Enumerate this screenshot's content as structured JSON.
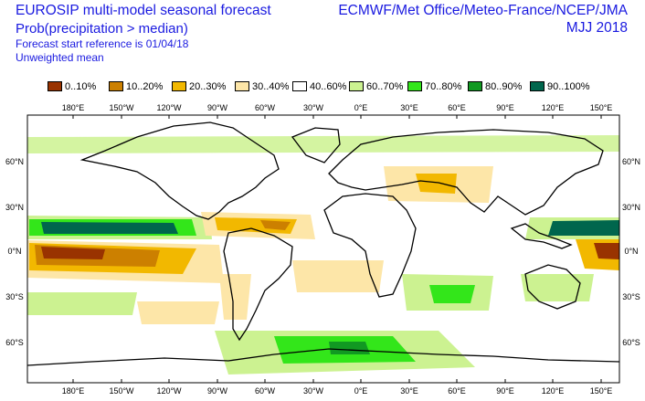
{
  "header": {
    "title": "EUROSIP multi-model seasonal forecast",
    "subtitle": "Prob(precipitation > median)",
    "line3": "Forecast start reference is 01/04/18",
    "line4": "Unweighted mean",
    "agencies": "ECMWF/Met Office/Meteo-France/NCEP/JMA",
    "period": "MJJ 2018"
  },
  "legend": [
    {
      "label": "0..10%",
      "color": "#993300"
    },
    {
      "label": "10..20%",
      "color": "#cc8000"
    },
    {
      "label": "20..30%",
      "color": "#f2b800"
    },
    {
      "label": "30..40%",
      "color": "#fde6a8"
    },
    {
      "label": "40..60%",
      "color": "#ffffff"
    },
    {
      "label": "60..70%",
      "color": "#ccf291"
    },
    {
      "label": "70..80%",
      "color": "#33e61a"
    },
    {
      "label": "80..90%",
      "color": "#119922"
    },
    {
      "label": "90..100%",
      "color": "#00664d"
    }
  ],
  "map": {
    "lon_ticks": [
      "180°E",
      "150°W",
      "120°W",
      "90°W",
      "60°W",
      "30°W",
      "0°E",
      "30°E",
      "60°E",
      "90°E",
      "120°E",
      "150°E"
    ],
    "lat_ticks": [
      "60°N",
      "30°N",
      "0°N",
      "30°S",
      "60°S"
    ]
  }
}
